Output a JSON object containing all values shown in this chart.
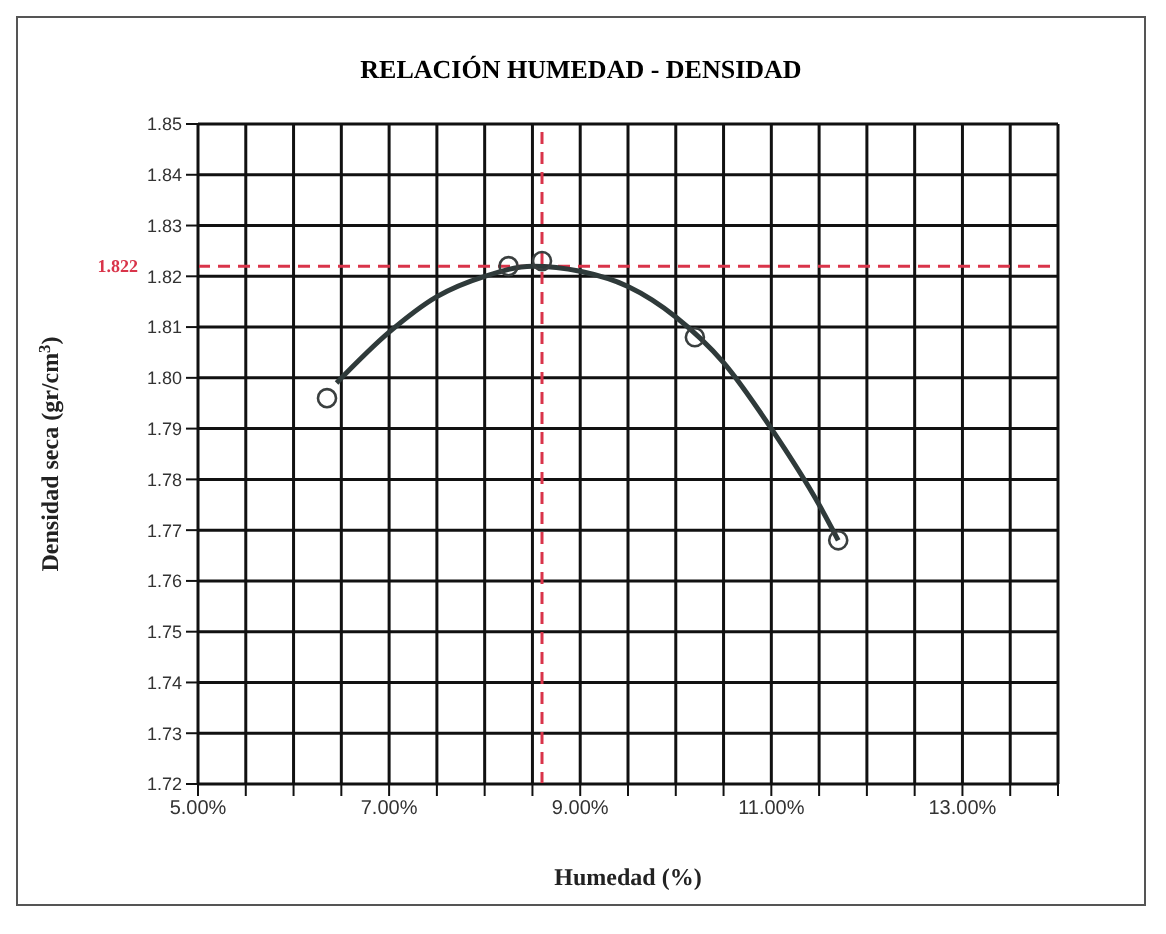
{
  "chart_data": {
    "type": "scatter",
    "title": "RELACIÓN HUMEDAD - DENSIDAD",
    "xlabel": "Humedad (%)",
    "ylabel": "Densidad seca (gr/cm$^{3}$)",
    "xlim": [
      5,
      14
    ],
    "ylim": [
      1.72,
      1.85
    ],
    "xticks": [
      {
        "value": 5,
        "label": "5.00%"
      },
      {
        "value": 5.5,
        "label": null
      },
      {
        "value": 6,
        "label": null
      },
      {
        "value": 6.5,
        "label": null
      },
      {
        "value": 7,
        "label": "7.00%"
      },
      {
        "value": 7.5,
        "label": null
      },
      {
        "value": 8,
        "label": null
      },
      {
        "value": 8.5,
        "label": null
      },
      {
        "value": 9,
        "label": "9.00%"
      },
      {
        "value": 9.5,
        "label": null
      },
      {
        "value": 10,
        "label": null
      },
      {
        "value": 10.5,
        "label": null
      },
      {
        "value": 11,
        "label": "11.00%"
      },
      {
        "value": 11.5,
        "label": null
      },
      {
        "value": 12,
        "label": null
      },
      {
        "value": 12.5,
        "label": null
      },
      {
        "value": 13,
        "label": "13.00%"
      },
      {
        "value": 13.5,
        "label": null
      },
      {
        "value": 14,
        "label": null
      }
    ],
    "yticks": [
      1.72,
      1.73,
      1.74,
      1.75,
      1.76,
      1.77,
      1.78,
      1.79,
      {
        "value": 1.8,
        "label": "1.80"
      },
      1.81,
      1.82,
      1.83,
      1.84,
      1.85
    ],
    "grid": true,
    "marker": "circle",
    "series": [
      {
        "color": "#3a3f3f",
        "x": [
          6.35,
          8.25,
          8.6,
          10.2,
          11.7
        ],
        "values": [
          1.796,
          1.822,
          1.823,
          1.808,
          1.768
        ]
      },
      {
        "type": "line",
        "color": "#2f3a3a",
        "line_style": "solid",
        "marker": "none",
        "x": [
          6.45,
          7,
          7.5,
          8,
          8.5,
          9,
          9.5,
          10,
          10.5,
          11,
          11.5,
          11.7
        ],
        "values": [
          1.799,
          1.809,
          1.816,
          1.82,
          1.822,
          1.821,
          1.818,
          1.812,
          1.803,
          1.79,
          1.775,
          1.768
        ]
      }
    ],
    "ref_lines": [
      {
        "axis": "y",
        "value": 1.822,
        "label": "1.822",
        "color": "#d9344a",
        "line_style": "dashed"
      },
      {
        "axis": "x",
        "value": 8.6,
        "color": "#d9344a",
        "line_style": "dashed"
      }
    ]
  }
}
